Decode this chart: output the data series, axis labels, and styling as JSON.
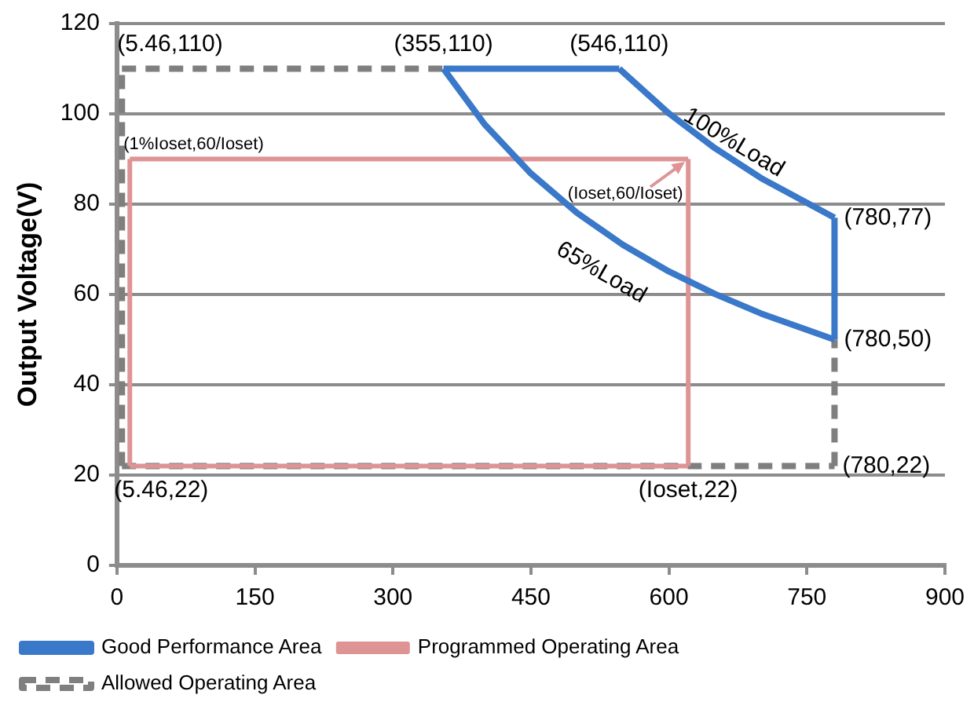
{
  "chart_data": {
    "type": "line",
    "ylabel": "Output Voltage(V)",
    "xlim": [
      0,
      900
    ],
    "xticks": [
      0,
      150,
      300,
      450,
      600,
      750,
      900
    ],
    "ylim": [
      0,
      120
    ],
    "yticks": [
      0,
      20,
      40,
      60,
      80,
      100,
      120
    ],
    "grid": "y",
    "legend": "bottom",
    "marker": "none",
    "series": [
      {
        "name": "Good Performance Area",
        "color": "#3a78c9",
        "x": [
          355,
          546
        ],
        "values": [
          110,
          110
        ]
      },
      {
        "color": "#3a78c9",
        "x": [
          355,
          400,
          450,
          500,
          550,
          600,
          650,
          700,
          780
        ],
        "values": [
          110,
          97.6,
          86.8,
          78.1,
          71,
          65.1,
          60.1,
          55.8,
          50
        ]
      },
      {
        "color": "#3a78c9",
        "x": [
          546,
          600,
          650,
          700,
          780
        ],
        "values": [
          110,
          100.1,
          92.4,
          85.8,
          77
        ]
      },
      {
        "color": "#3a78c9",
        "x": [
          780,
          780
        ],
        "values": [
          50,
          77
        ]
      },
      {
        "name": "Programmed Operating Area",
        "color": "#de9494",
        "x": [
          14,
          621
        ],
        "values": [
          90,
          90
        ]
      },
      {
        "color": "#de9494",
        "x": [
          14,
          14
        ],
        "values": [
          22,
          90
        ]
      },
      {
        "color": "#de9494",
        "x": [
          621,
          621
        ],
        "values": [
          22,
          90
        ]
      },
      {
        "color": "#de9494",
        "x": [
          14,
          621
        ],
        "values": [
          22,
          22
        ]
      },
      {
        "name": "Allowed Operating Area",
        "color": "#7f7f7f",
        "line_style": "dashed",
        "x": [
          5.46,
          355
        ],
        "values": [
          110,
          110
        ]
      },
      {
        "color": "#7f7f7f",
        "line_style": "dashed",
        "x": [
          5.46,
          5.46
        ],
        "values": [
          22,
          110
        ]
      },
      {
        "color": "#7f7f7f",
        "line_style": "dashed",
        "x": [
          5.46,
          780
        ],
        "values": [
          22,
          22
        ]
      },
      {
        "color": "#7f7f7f",
        "line_style": "dashed",
        "x": [
          780,
          780
        ],
        "values": [
          22,
          50
        ]
      }
    ],
    "annotations": [
      {
        "text": "(5.46,110)",
        "x": 5.46,
        "y": 110
      },
      {
        "text": "(355,110)",
        "x": 355,
        "y": 110
      },
      {
        "text": "(546,110)",
        "x": 546,
        "y": 110
      },
      {
        "text": "(780,77)",
        "x": 780,
        "y": 77
      },
      {
        "text": "(780,50)",
        "x": 780,
        "y": 50
      },
      {
        "text": "(780,22)",
        "x": 780,
        "y": 22
      },
      {
        "text": "(5.46,22)",
        "x": 5.46,
        "y": 22
      },
      {
        "text": "(Ioset,22)",
        "x": 621,
        "y": 22
      },
      {
        "text": "(1%Ioset,60/Ioset)",
        "x": 14,
        "y": 90
      },
      {
        "text": "(Ioset,60/Ioset)",
        "x": 621,
        "y": 90
      },
      "100%Load",
      "65%Load"
    ]
  }
}
